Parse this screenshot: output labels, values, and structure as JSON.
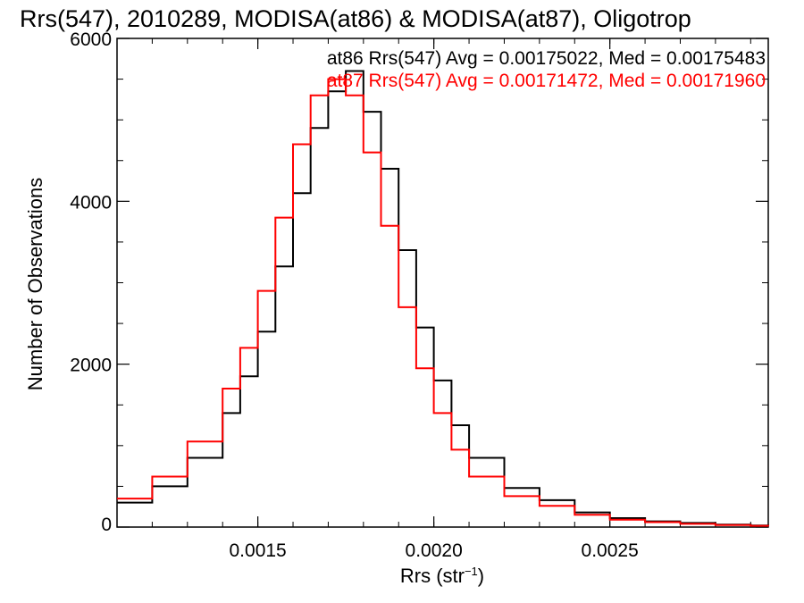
{
  "chart_data": {
    "type": "line",
    "title": "Rrs(547), 2010289, MODISA(at86) & MODISA(at87), Oligotrop",
    "xlabel": "Rrs (str",
    "xlabel_sup": "−1",
    "xlabel_close": ")",
    "ylabel": "Number of Observations",
    "xlim": [
      0.0011,
      0.00295
    ],
    "ylim": [
      0,
      6000
    ],
    "xticks": [
      {
        "value": 0.0015,
        "label": "0.0015"
      },
      {
        "value": 0.002,
        "label": "0.0020"
      },
      {
        "value": 0.0025,
        "label": "0.0025"
      }
    ],
    "yticks": [
      {
        "value": 0,
        "label": "0"
      },
      {
        "value": 2000,
        "label": "2000"
      },
      {
        "value": 4000,
        "label": "4000"
      },
      {
        "value": 6000,
        "label": "6000"
      }
    ],
    "annotations": [
      {
        "text": "at86 Rrs(547) Avg = 0.00175022, Med = 0.00175483",
        "color": "#000000"
      },
      {
        "text": "at87 Rrs(547) Avg = 0.00171472, Med = 0.00171960",
        "color": "#ff0000"
      }
    ],
    "grid": false,
    "step": true,
    "series": [
      {
        "color": "#000000",
        "x": [
          0.0011,
          0.0012,
          0.0013,
          0.0014,
          0.00145,
          0.0015,
          0.00155,
          0.0016,
          0.00165,
          0.0017,
          0.00175,
          0.0018,
          0.00185,
          0.0019,
          0.00195,
          0.002,
          0.00205,
          0.0021,
          0.0022,
          0.0023,
          0.0024,
          0.0025,
          0.0026,
          0.0027,
          0.0028,
          0.0029,
          0.00295
        ],
        "y": [
          300,
          500,
          850,
          1400,
          1850,
          2400,
          3200,
          4100,
          4900,
          5350,
          5600,
          5100,
          4400,
          3400,
          2450,
          1800,
          1250,
          850,
          480,
          330,
          180,
          110,
          70,
          50,
          30,
          20,
          15
        ]
      },
      {
        "color": "#ff0000",
        "x": [
          0.0011,
          0.0012,
          0.0013,
          0.0014,
          0.00145,
          0.0015,
          0.00155,
          0.0016,
          0.00165,
          0.0017,
          0.00175,
          0.0018,
          0.00185,
          0.0019,
          0.00195,
          0.002,
          0.00205,
          0.0021,
          0.0022,
          0.0023,
          0.0024,
          0.0025,
          0.0026,
          0.0027,
          0.0028,
          0.0029,
          0.00295
        ],
        "y": [
          350,
          620,
          1050,
          1700,
          2200,
          2900,
          3800,
          4700,
          5300,
          5500,
          5300,
          4600,
          3700,
          2700,
          1950,
          1400,
          950,
          620,
          380,
          260,
          150,
          90,
          60,
          40,
          25,
          15,
          10
        ]
      }
    ]
  }
}
